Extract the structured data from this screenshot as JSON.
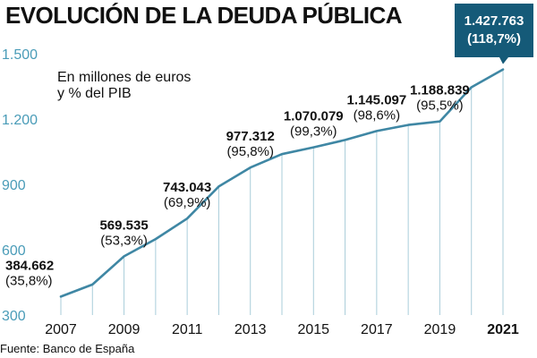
{
  "header": {
    "title": "EVOLUCIÓN DE LA DEUDA PÚBLICA",
    "subtitle_line1": "En millones de euros",
    "subtitle_line2": "y % del PIB"
  },
  "footer": {
    "source": "Fuente: Banco de España"
  },
  "colors": {
    "line": "#3f87a4",
    "axis_text": "#4a9cb8",
    "tick": "#a9cdda",
    "callout_bg": "#155a78",
    "callout_text": "#ffffff",
    "text": "#111111"
  },
  "chart_data": {
    "type": "line",
    "title": "EVOLUCIÓN DE LA DEUDA PÚBLICA",
    "subtitle": "En millones de euros y % del PIB",
    "xlabel": "",
    "ylabel": "",
    "ylim": [
      300,
      1500
    ],
    "xlim": [
      2007,
      2021
    ],
    "y_ticks": [
      300,
      600,
      900,
      1200,
      1500
    ],
    "y_tick_labels": [
      "300",
      "600",
      "900",
      "1.200",
      "1.500"
    ],
    "x_ticks": [
      2007,
      2009,
      2011,
      2013,
      2015,
      2017,
      2019,
      2021
    ],
    "x_tick_labels": [
      "2007",
      "2009",
      "2011",
      "2013",
      "2015",
      "2017",
      "2019",
      "2021"
    ],
    "series": [
      {
        "x": [
          2007,
          2008,
          2009,
          2010,
          2011,
          2012,
          2013,
          2014,
          2015,
          2016,
          2017,
          2018,
          2019,
          2020,
          2021
        ],
        "values": [
          384.662,
          440,
          569.535,
          649,
          743.043,
          890,
          977.312,
          1039,
          1070.079,
          1104,
          1145.097,
          1173,
          1188.839,
          1346,
          1427.763
        ]
      }
    ],
    "annotations": [
      {
        "year": 2007,
        "value": "384.662",
        "pct": "(35,8%)",
        "anchor": "start"
      },
      {
        "year": 2009,
        "value": "569.535",
        "pct": "(53,3%)",
        "anchor": "middle"
      },
      {
        "year": 2011,
        "value": "743.043",
        "pct": "(69,9%)",
        "anchor": "middle"
      },
      {
        "year": 2013,
        "value": "977.312",
        "pct": "(95,8%)",
        "anchor": "middle"
      },
      {
        "year": 2015,
        "value": "1.070.079",
        "pct": "(99,3%)",
        "anchor": "middle"
      },
      {
        "year": 2017,
        "value": "1.145.097",
        "pct": "(98,6%)",
        "anchor": "middle"
      },
      {
        "year": 2019,
        "value": "1.188.839",
        "pct": "(95,5%)",
        "anchor": "middle"
      }
    ],
    "callout": {
      "year": 2021,
      "value": "1.427.763",
      "pct": "(118,7%)"
    },
    "highlight_x_label": "2021",
    "grid": false,
    "legend": "none"
  }
}
